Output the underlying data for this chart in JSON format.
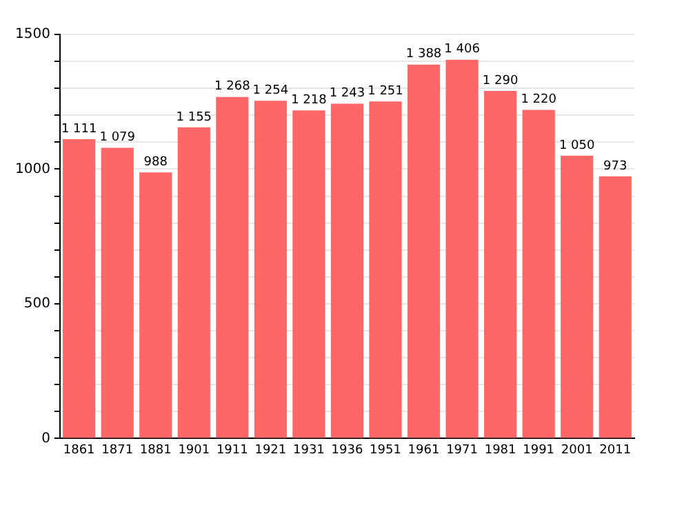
{
  "chart_data": {
    "type": "bar",
    "categories": [
      "1861",
      "1871",
      "1881",
      "1901",
      "1911",
      "1921",
      "1931",
      "1936",
      "1951",
      "1961",
      "1971",
      "1981",
      "1991",
      "2001",
      "2011"
    ],
    "values": [
      1111,
      1079,
      988,
      1155,
      1268,
      1254,
      1218,
      1243,
      1251,
      1388,
      1406,
      1290,
      1220,
      1050,
      973
    ],
    "value_labels": [
      "1 111",
      "1 079",
      "988",
      "1 155",
      "1 268",
      "1 254",
      "1 218",
      "1 243",
      "1 251",
      "1 388",
      "1 406",
      "1 290",
      "1 220",
      "1 050",
      "973"
    ],
    "color": "#ff6666",
    "ylim": [
      0,
      1500
    ],
    "yticks": [
      0,
      {
        "value": 100,
        "label": null
      },
      {
        "value": 200,
        "label": null
      },
      {
        "value": 300,
        "label": null
      },
      {
        "value": 400,
        "label": null
      },
      500,
      {
        "value": 600,
        "label": null
      },
      {
        "value": 700,
        "label": null
      },
      {
        "value": 800,
        "label": null
      },
      {
        "value": 900,
        "label": null
      },
      1000,
      {
        "value": 1100,
        "label": null
      },
      {
        "value": 1200,
        "label": null
      },
      {
        "value": 1300,
        "label": null
      },
      {
        "value": 1400,
        "label": null
      },
      1500
    ],
    "grid": "y",
    "legend": false
  }
}
